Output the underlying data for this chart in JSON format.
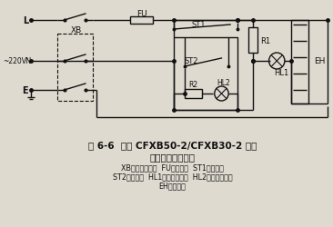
{
  "title_line1": "图 6-6  柏力 CFXB50-2/CFXB30-2 豪华",
  "title_line2": "西施电饭锅电路图",
  "legend_line1": "XB、电源控制器  FU、熔断器  ST1、限温器",
  "legend_line2": "ST2、保温器  HL1、煮饭指示灯  HL2、保温指示灯",
  "legend_line3": "EH、发热器",
  "bg_color": "#dedad0",
  "line_color": "#111111",
  "label_color": "#111111"
}
